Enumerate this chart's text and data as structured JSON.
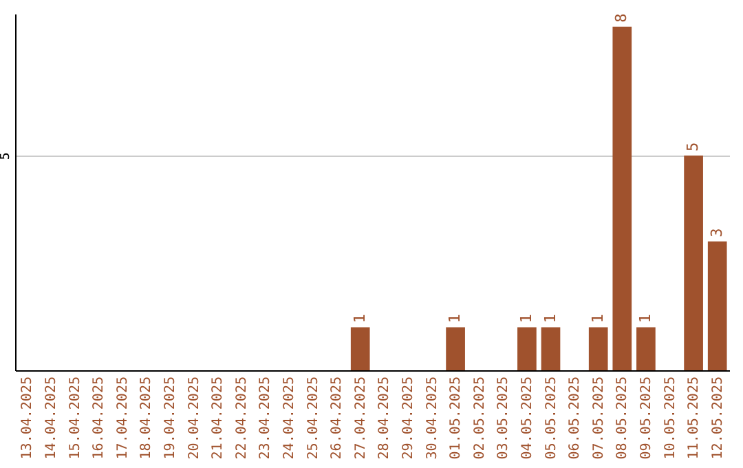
{
  "chart_data": {
    "type": "bar",
    "categories": [
      "13.04.2025",
      "14.04.2025",
      "15.04.2025",
      "16.04.2025",
      "17.04.2025",
      "18.04.2025",
      "19.04.2025",
      "20.04.2025",
      "21.04.2025",
      "22.04.2025",
      "23.04.2025",
      "24.04.2025",
      "25.04.2025",
      "26.04.2025",
      "27.04.2025",
      "28.04.2025",
      "29.04.2025",
      "30.04.2025",
      "01.05.2025",
      "02.05.2025",
      "03.05.2025",
      "04.05.2025",
      "05.05.2025",
      "06.05.2025",
      "07.05.2025",
      "08.05.2025",
      "09.05.2025",
      "10.05.2025",
      "11.05.2025",
      "12.05.2025"
    ],
    "values": [
      null,
      null,
      null,
      null,
      null,
      null,
      null,
      null,
      null,
      null,
      null,
      null,
      null,
      null,
      1,
      null,
      null,
      null,
      1,
      null,
      null,
      1,
      1,
      null,
      1,
      8,
      1,
      null,
      5,
      3
    ],
    "color": "#a0522d",
    "ylim": [
      0,
      8.3
    ],
    "yticks": [
      5
    ],
    "grid": "y",
    "data_labels": true
  }
}
